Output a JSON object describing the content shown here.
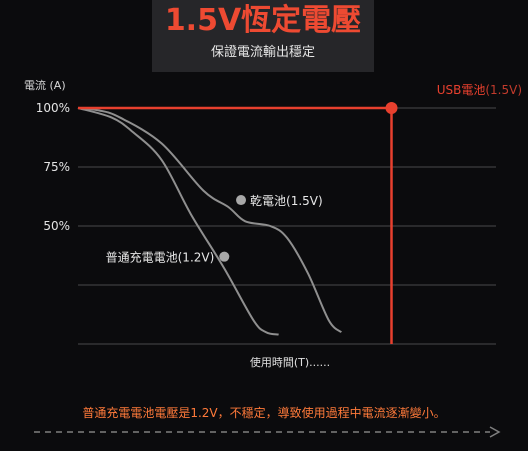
{
  "header": {
    "title": "1.5V恆定電壓",
    "subtitle": "保證電流輸出穩定"
  },
  "caption": "普通充電電池電壓是1.2V，不穩定，導致使用過程中電流逐漸變小。",
  "colors": {
    "background": "#0b0b0d",
    "title_box": "#262629",
    "accent_red": "#e8402e",
    "caption_orange": "#ff7a3a",
    "grid": "#4a4a4a",
    "curve": "#8f8f8f"
  },
  "chart_data": {
    "type": "line",
    "ylabel": "電流 (A)",
    "xlabel": "使用時間(T)......",
    "y_ticks": [
      "100%",
      "75%",
      "50%"
    ],
    "y_tick_values": [
      100,
      75,
      50
    ],
    "ylim": [
      0,
      100
    ],
    "xlim": [
      0,
      10
    ],
    "grid": true,
    "series": [
      {
        "name": "USB電池",
        "suffix": "(1.5V)",
        "color": "#e8402e",
        "x": [
          0,
          1,
          2,
          3,
          4,
          5,
          6,
          7,
          7.5
        ],
        "y": [
          100,
          100,
          100,
          100,
          100,
          100,
          100,
          100,
          100
        ],
        "drop_to": 0,
        "marker_x": 7.5
      },
      {
        "name": "乾電池(1.5V)",
        "color": "#8f8f8f",
        "x": [
          0,
          0.5,
          1.0,
          2.0,
          3.0,
          3.6,
          4.0,
          4.6,
          5.0,
          5.5,
          6.0,
          6.3
        ],
        "y": [
          100,
          99,
          96,
          85,
          65,
          58,
          52,
          50,
          45,
          30,
          10,
          5
        ],
        "marker_x": 3.9,
        "marker_y": 61
      },
      {
        "name": "普通充電電池(1.2V)",
        "color": "#8f8f8f",
        "x": [
          0,
          0.8,
          1.3,
          2.0,
          2.7,
          3.5,
          4.2,
          4.5,
          4.8
        ],
        "y": [
          100,
          96,
          90,
          78,
          55,
          32,
          10,
          5,
          4
        ],
        "marker_x": 3.5,
        "marker_y": 37
      }
    ]
  }
}
